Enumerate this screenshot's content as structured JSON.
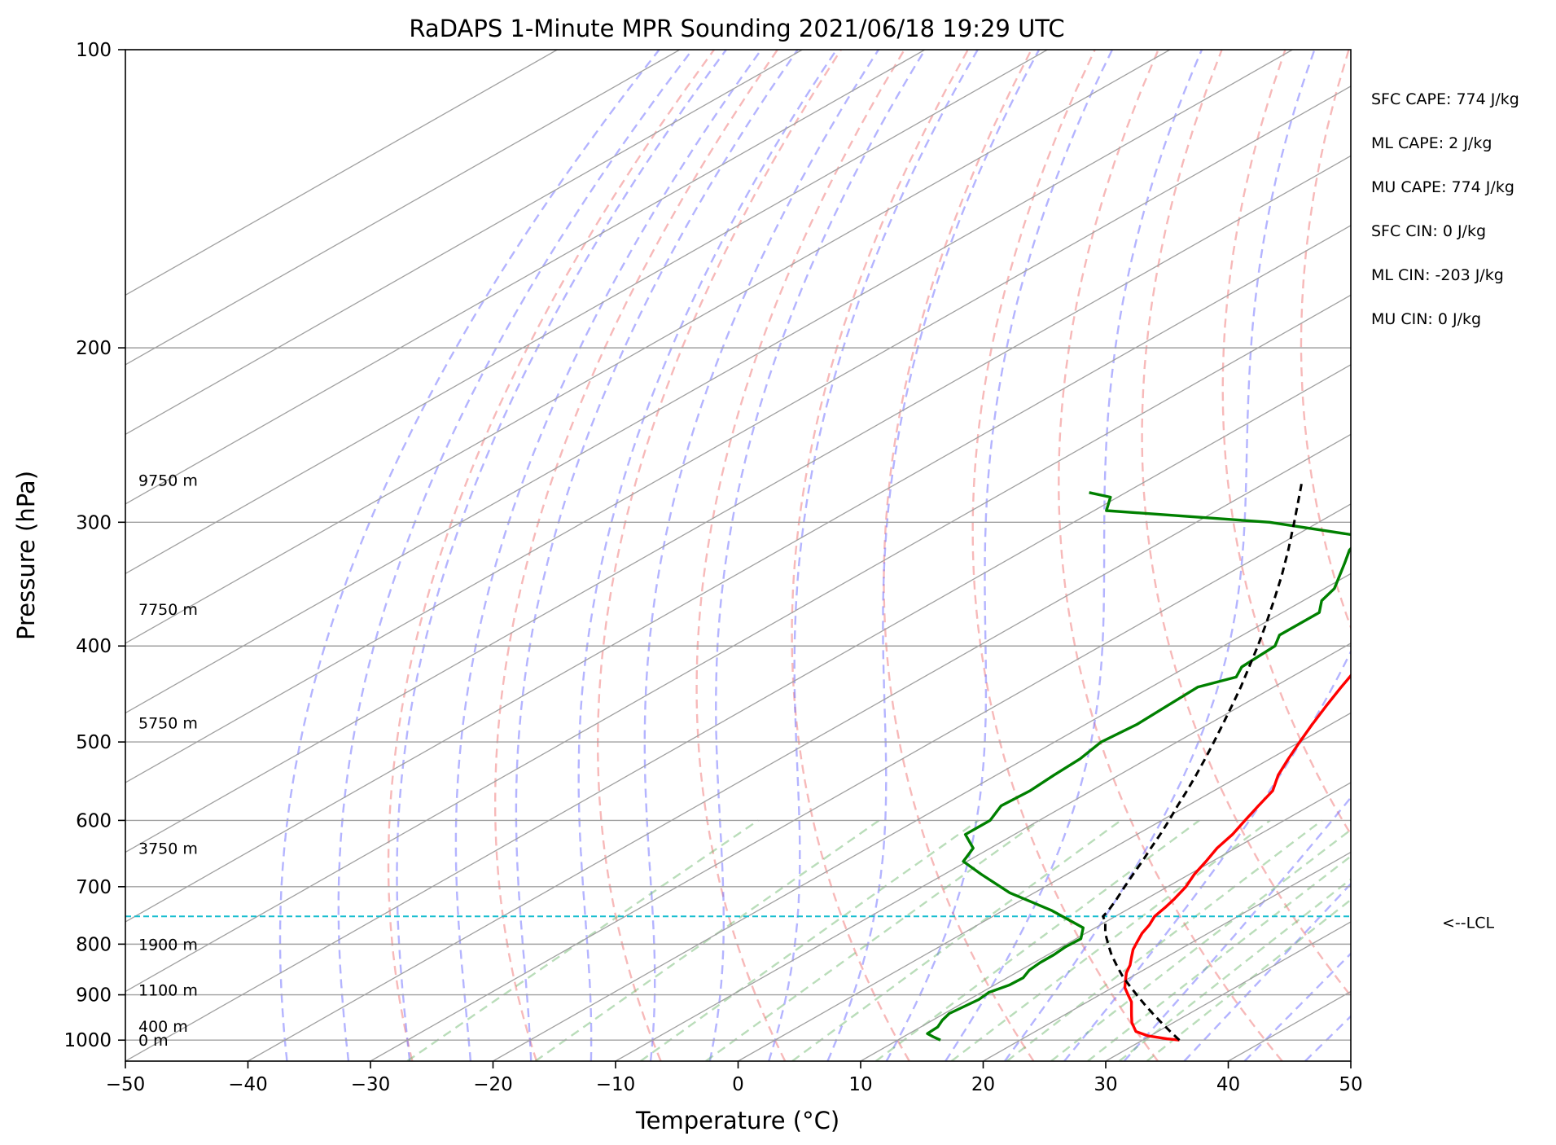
{
  "chart_data": {
    "type": "line",
    "title": "RaDAPS 1-Minute MPR Sounding 2021/06/18 19:29 UTC",
    "xlabel": "Temperature (°C)",
    "ylabel": "Pressure (hPa)",
    "xlim": [
      -50,
      50
    ],
    "ylim": [
      1050,
      100
    ],
    "y_scale": "log",
    "skew": true,
    "grid": true,
    "x_ticks": [
      -50,
      -40,
      -30,
      -20,
      -10,
      0,
      10,
      20,
      30,
      40,
      50
    ],
    "x_tick_labels": [
      "−50",
      "−40",
      "−30",
      "−20",
      "−10",
      "0",
      "10",
      "20",
      "30",
      "40",
      "50"
    ],
    "y_ticks": [
      1000,
      900,
      800,
      700,
      600,
      500,
      400,
      300,
      200,
      100
    ],
    "y_tick_labels": [
      "1000",
      "900",
      "800",
      "700",
      "600",
      "500",
      "400",
      "300",
      "200",
      "100"
    ],
    "colors": {
      "temperature": "#ff0000",
      "dewpoint": "#008000",
      "parcel": "#000000",
      "lcl": "#17becf",
      "isotherm": "#a0a0a0",
      "dry_adiabat": "#f08080",
      "moist_adiabat": "#6a6aff",
      "mixing_ratio": "#66b366"
    },
    "series": [
      {
        "key": "temperature",
        "p": [
          1000,
          997,
          990,
          980,
          970,
          960,
          945,
          930,
          915,
          900,
          885,
          870,
          855,
          840,
          825,
          810,
          795,
          780,
          765,
          750,
          735,
          720,
          700,
          680,
          660,
          640,
          620,
          600,
          580,
          560,
          540,
          520,
          500,
          480,
          460,
          440,
          420,
          400,
          380,
          360,
          340,
          320,
          300,
          280,
          272
        ],
        "t": [
          33,
          31.8,
          29.8,
          28.2,
          27.4,
          26.6,
          25.6,
          24.6,
          23.6,
          22.3,
          21.0,
          20.0,
          19.0,
          18.2,
          17.2,
          16.2,
          15.4,
          14.6,
          14.0,
          13.2,
          12.8,
          12.3,
          11.5,
          10.4,
          9.5,
          8.5,
          7.8,
          6.8,
          5.8,
          4.8,
          3.0,
          1.5,
          0.0,
          -1.5,
          -3.0,
          -4.5,
          -6.0,
          -7.8,
          -9.6,
          -11.4,
          -13.0,
          -15.0,
          -16.8,
          -18.2,
          -18.8
        ]
      },
      {
        "key": "dewpoint",
        "p": [
          1000,
          992,
          985,
          970,
          955,
          940,
          925,
          910,
          895,
          880,
          865,
          850,
          835,
          820,
          805,
          790,
          770,
          740,
          710,
          680,
          660,
          640,
          620,
          600,
          580,
          560,
          540,
          520,
          500,
          480,
          460,
          440,
          430,
          420,
          400,
          390,
          370,
          360,
          350,
          330,
          320,
          310,
          300,
          292,
          283,
          280
        ],
        "t": [
          13.5,
          12.4,
          11.5,
          11.4,
          10.8,
          10.4,
          10.6,
          10.8,
          10.6,
          11.2,
          11.3,
          10.7,
          10.5,
          10.5,
          10.3,
          10.4,
          9.0,
          4.0,
          -2.0,
          -7.0,
          -10.3,
          -11.4,
          -14.0,
          -14.0,
          -15.2,
          -15.0,
          -15.3,
          -15.5,
          -16.2,
          -15.8,
          -16.0,
          -16.2,
          -14.5,
          -15.5,
          -15.8,
          -17.0,
          -17.0,
          -18.5,
          -19.2,
          -22.0,
          -23.5,
          -24.4,
          -34.0,
          -49.0,
          -50.6,
          -53.0
        ]
      },
      {
        "key": "parcel",
        "p": [
          1000,
          980,
          960,
          940,
          920,
          900,
          880,
          860,
          840,
          820,
          800,
          780,
          760,
          750,
          740,
          720,
          700,
          680,
          660,
          640,
          620,
          600,
          580,
          560,
          540,
          520,
          500,
          480,
          460,
          440,
          420,
          400,
          380,
          360,
          340,
          320,
          300,
          280,
          272
        ],
        "t": [
          33,
          31.0,
          29.0,
          27.0,
          25.0,
          23.0,
          21.0,
          19.0,
          17.1,
          15.2,
          13.4,
          11.6,
          10.0,
          9.0,
          8.6,
          7.6,
          6.5,
          5.4,
          4.3,
          3.1,
          1.9,
          0.6,
          -0.8,
          -2.2,
          -3.7,
          -5.3,
          -7.0,
          -8.8,
          -10.7,
          -12.7,
          -14.9,
          -17.2,
          -19.7,
          -22.4,
          -25.3,
          -28.5,
          -32.0,
          -35.8,
          -37.4
        ]
      }
    ],
    "lcl_pressure": 750,
    "lcl_label": "<--LCL",
    "height_labels": [
      {
        "p": 1000,
        "text": "0 m"
      },
      {
        "p": 968,
        "text": "400 m"
      },
      {
        "p": 890,
        "text": "1100 m"
      },
      {
        "p": 800,
        "text": "1900 m"
      },
      {
        "p": 640,
        "text": "3750 m"
      },
      {
        "p": 478,
        "text": "5750 m"
      },
      {
        "p": 367,
        "text": "7750 m"
      },
      {
        "p": 272,
        "text": "9750 m"
      }
    ],
    "indices": [
      {
        "text": "SFC CAPE: 774 J/kg"
      },
      {
        "text": "ML CAPE: 2 J/kg"
      },
      {
        "text": "MU CAPE: 774 J/kg"
      },
      {
        "text": "SFC CIN: 0 J/kg"
      },
      {
        "text": "ML CIN: -203 J/kg"
      },
      {
        "text": "MU CIN: 0 J/kg"
      }
    ]
  }
}
